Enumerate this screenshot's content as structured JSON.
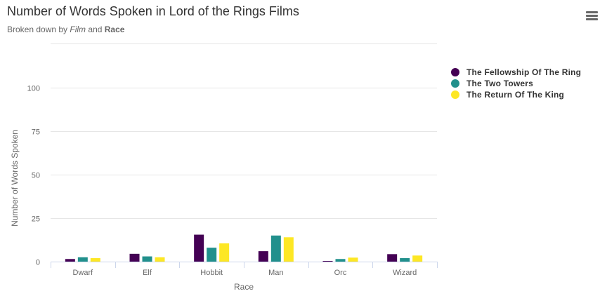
{
  "chart_data": {
    "type": "bar",
    "title": "Number of Words Spoken in Lord of the Rings Films",
    "subtitle": {
      "prefix": "Broken down by ",
      "em": "Film",
      "middle": " and ",
      "strong": "Race"
    },
    "xlabel": "Race",
    "ylabel": "Number of Words Spoken",
    "categories": [
      "Dwarf",
      "Elf",
      "Hobbit",
      "Man",
      "Orc",
      "Wizard"
    ],
    "ylim": [
      0,
      100
    ],
    "yticks": [
      "0",
      "25",
      "50",
      "75",
      "100"
    ],
    "grid": true,
    "legend_position": "right",
    "series": [
      {
        "name": "The Fellowship Of The Ring",
        "color": "#440154",
        "values": [
          1.5,
          4.5,
          15.5,
          6,
          0.3,
          4.3
        ]
      },
      {
        "name": "The Two Towers",
        "color": "#21908C",
        "values": [
          2.5,
          3,
          8,
          15,
          1.5,
          2
        ]
      },
      {
        "name": "The Return Of The King",
        "color": "#FDE725",
        "values": [
          2,
          2.5,
          10.5,
          14,
          2.3,
          3.5
        ]
      }
    ]
  },
  "menu": {
    "icon": "hamburger-menu-icon"
  }
}
